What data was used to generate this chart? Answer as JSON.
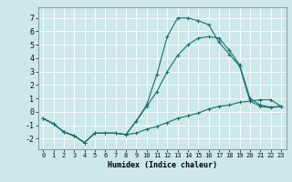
{
  "title": "",
  "xlabel": "Humidex (Indice chaleur)",
  "ylabel": "",
  "bg_color": "#cce8e8",
  "line_color": "#1a6b6b",
  "grid_color": "#ffffff",
  "xlim": [
    -0.5,
    23.5
  ],
  "ylim": [
    -2.8,
    7.8
  ],
  "yticks": [
    -2,
    -1,
    0,
    1,
    2,
    3,
    4,
    5,
    6,
    7
  ],
  "xticks": [
    0,
    1,
    2,
    3,
    4,
    5,
    6,
    7,
    8,
    9,
    10,
    11,
    12,
    13,
    14,
    15,
    16,
    17,
    18,
    19,
    20,
    21,
    22,
    23
  ],
  "line1_x": [
    0,
    1,
    2,
    3,
    4,
    5,
    6,
    7,
    8,
    9,
    10,
    11,
    12,
    13,
    14,
    15,
    16,
    17,
    18,
    19,
    20,
    21,
    22,
    23
  ],
  "line1_y": [
    -0.5,
    -0.9,
    -1.5,
    -1.8,
    -2.3,
    -1.6,
    -1.6,
    -1.6,
    -1.7,
    -1.6,
    -1.3,
    -1.1,
    -0.8,
    -0.5,
    -0.3,
    -0.1,
    0.2,
    0.4,
    0.5,
    0.7,
    0.8,
    0.9,
    0.9,
    0.4
  ],
  "line2_x": [
    0,
    1,
    2,
    3,
    4,
    5,
    6,
    7,
    8,
    9,
    10,
    11,
    12,
    13,
    14,
    15,
    16,
    17,
    18,
    19,
    20,
    21,
    22,
    23
  ],
  "line2_y": [
    -0.5,
    -0.9,
    -1.5,
    -1.8,
    -2.3,
    -1.6,
    -1.6,
    -1.6,
    -1.7,
    -0.7,
    0.5,
    2.8,
    5.6,
    7.0,
    7.0,
    6.8,
    6.5,
    5.2,
    4.3,
    3.4,
    0.8,
    0.4,
    0.3,
    0.4
  ],
  "line3_x": [
    0,
    1,
    2,
    3,
    4,
    5,
    6,
    7,
    8,
    9,
    10,
    11,
    12,
    13,
    14,
    15,
    16,
    17,
    18,
    19,
    20,
    21,
    22,
    23
  ],
  "line3_y": [
    -0.5,
    -0.9,
    -1.5,
    -1.8,
    -2.3,
    -1.6,
    -1.6,
    -1.6,
    -1.7,
    -0.7,
    0.4,
    1.5,
    3.0,
    4.2,
    5.0,
    5.5,
    5.6,
    5.5,
    4.6,
    3.5,
    1.0,
    0.5,
    0.35,
    0.4
  ],
  "marker": "+",
  "markersize": 3,
  "linewidth": 0.8,
  "font_family": "monospace",
  "tick_fontsize": 5,
  "xlabel_fontsize": 6
}
